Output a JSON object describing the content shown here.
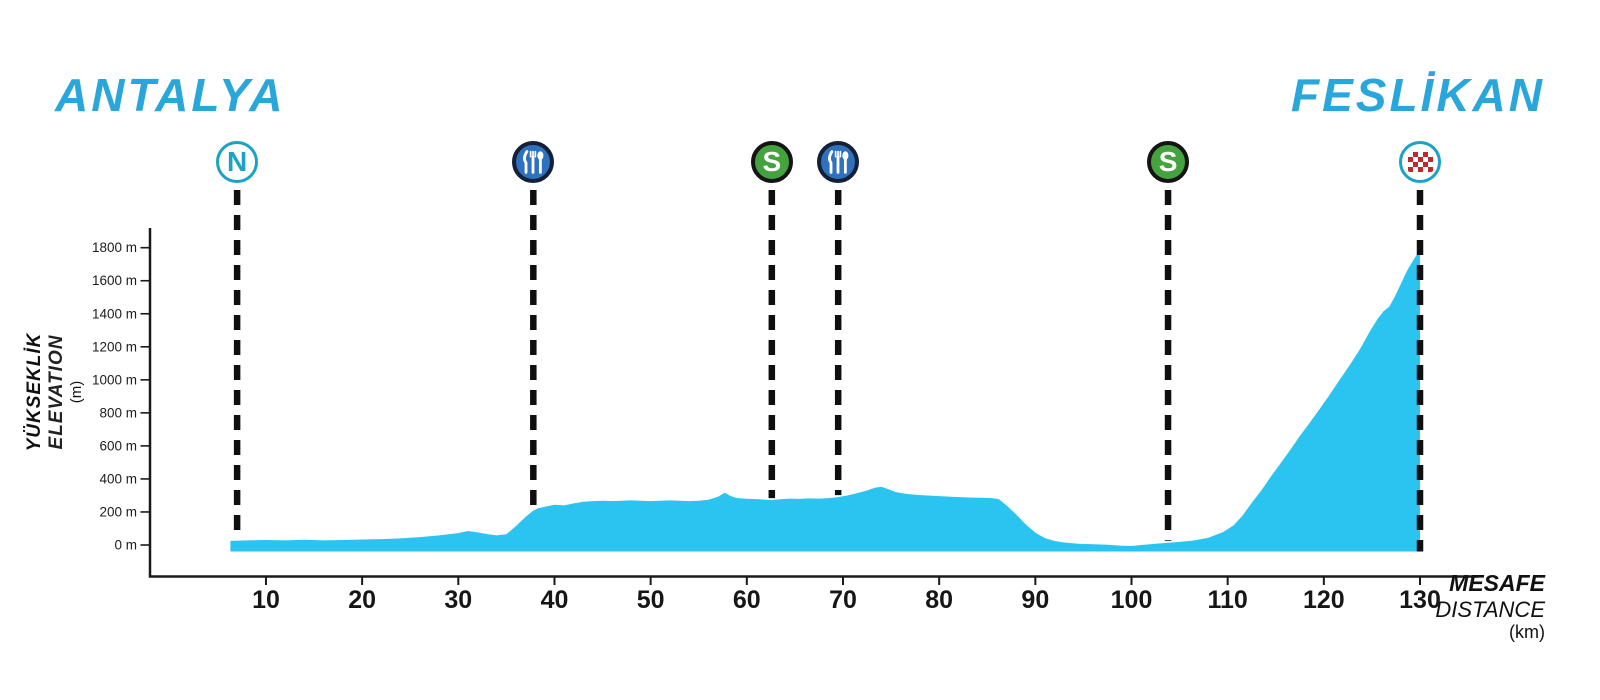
{
  "header": {
    "start_label": "ANTALYA",
    "finish_label": "FESLİKAN"
  },
  "y_axis": {
    "title_line1": "YÜKSEKLİK",
    "title_line2": "ELEVATION",
    "title_line3": "(m)",
    "tick_labels": [
      "0 m",
      "200 m",
      "400 m",
      "600 m",
      "800 m",
      "1000 m",
      "1200 m",
      "1400 m",
      "1600 m",
      "1800 m"
    ],
    "tick_values": [
      0,
      200,
      400,
      600,
      800,
      1000,
      1200,
      1400,
      1600,
      1800
    ]
  },
  "x_axis": {
    "label_line1": "MESAFE",
    "label_line2": "DISTANCE",
    "label_line3": "(km)",
    "tick_labels": [
      "10",
      "20",
      "30",
      "40",
      "50",
      "60",
      "70",
      "80",
      "90",
      "100",
      "110",
      "120",
      "130"
    ],
    "tick_values": [
      10,
      20,
      30,
      40,
      50,
      60,
      70,
      80,
      90,
      100,
      110,
      120,
      130
    ]
  },
  "colors": {
    "profile_fill": "#2BC4F0",
    "title": "#2AA7DA",
    "axis": "#1A1A1A",
    "dash": "#0F0F0F",
    "icon_ring_cyan": "#1BA3C6",
    "icon_letter_cyan": "#1BA3C6",
    "feed_bg": "#2E71BE",
    "feed_ring": "#142038",
    "sprint_bg": "#44A33F",
    "sprint_ring": "#141414",
    "checker_red": "#C4262E",
    "white": "#FFFFFF"
  },
  "chart_data": {
    "type": "area",
    "title": "Stage elevation profile Antalya to Feslikan",
    "xlabel": "MESAFE DISTANCE (km)",
    "ylabel": "YÜKSEKLİK ELEVATION (m)",
    "xlim": [
      0,
      138
    ],
    "ylim": [
      0,
      1900
    ],
    "grid": false,
    "profile": [
      [
        6.3,
        25
      ],
      [
        8,
        28
      ],
      [
        10,
        30
      ],
      [
        12,
        28
      ],
      [
        14,
        32
      ],
      [
        16,
        28
      ],
      [
        18,
        30
      ],
      [
        20,
        33
      ],
      [
        22,
        36
      ],
      [
        24,
        40
      ],
      [
        26,
        48
      ],
      [
        28,
        58
      ],
      [
        30,
        72
      ],
      [
        31,
        85
      ],
      [
        32,
        76
      ],
      [
        33,
        66
      ],
      [
        34,
        58
      ],
      [
        35,
        65
      ],
      [
        36,
        115
      ],
      [
        37,
        170
      ],
      [
        37.8,
        208
      ],
      [
        38.3,
        222
      ],
      [
        39,
        232
      ],
      [
        40,
        244
      ],
      [
        41,
        240
      ],
      [
        42,
        252
      ],
      [
        43,
        262
      ],
      [
        44,
        266
      ],
      [
        45,
        268
      ],
      [
        46,
        266
      ],
      [
        47,
        268
      ],
      [
        48,
        270
      ],
      [
        49,
        268
      ],
      [
        50,
        266
      ],
      [
        51,
        268
      ],
      [
        52,
        270
      ],
      [
        53,
        268
      ],
      [
        54,
        266
      ],
      [
        55,
        268
      ],
      [
        56,
        274
      ],
      [
        57,
        292
      ],
      [
        57.7,
        316
      ],
      [
        58.4,
        294
      ],
      [
        59,
        284
      ],
      [
        60,
        280
      ],
      [
        61,
        278
      ],
      [
        62,
        274
      ],
      [
        62.6,
        272
      ],
      [
        63.5,
        277
      ],
      [
        64.5,
        281
      ],
      [
        65.5,
        279
      ],
      [
        66.5,
        282
      ],
      [
        67.5,
        281
      ],
      [
        68.5,
        284
      ],
      [
        69.5,
        290
      ],
      [
        70.5,
        300
      ],
      [
        71.5,
        314
      ],
      [
        72.5,
        330
      ],
      [
        73.4,
        348
      ],
      [
        74,
        352
      ],
      [
        74.6,
        340
      ],
      [
        75.5,
        320
      ],
      [
        76.5,
        310
      ],
      [
        77.5,
        304
      ],
      [
        78.5,
        300
      ],
      [
        79.5,
        297
      ],
      [
        80.5,
        294
      ],
      [
        81.5,
        291
      ],
      [
        82.5,
        289
      ],
      [
        83.5,
        287
      ],
      [
        84.5,
        286
      ],
      [
        85.5,
        284
      ],
      [
        86.2,
        278
      ],
      [
        87,
        240
      ],
      [
        88,
        185
      ],
      [
        89,
        125
      ],
      [
        90,
        75
      ],
      [
        91,
        42
      ],
      [
        92,
        24
      ],
      [
        93,
        15
      ],
      [
        94.5,
        8
      ],
      [
        96,
        4
      ],
      [
        97.5,
        1
      ],
      [
        99,
        -4
      ],
      [
        100,
        -6
      ],
      [
        101,
        0
      ],
      [
        102.5,
        8
      ],
      [
        103.8,
        14
      ],
      [
        105,
        19
      ],
      [
        106.5,
        27
      ],
      [
        108,
        44
      ],
      [
        109.5,
        78
      ],
      [
        110.6,
        118
      ],
      [
        111.5,
        175
      ],
      [
        112.5,
        255
      ],
      [
        113.5,
        330
      ],
      [
        114.5,
        415
      ],
      [
        115.5,
        495
      ],
      [
        116.5,
        575
      ],
      [
        117.5,
        660
      ],
      [
        118.6,
        745
      ],
      [
        119.5,
        818
      ],
      [
        120.5,
        900
      ],
      [
        121.7,
        1005
      ],
      [
        122.7,
        1090
      ],
      [
        123.7,
        1180
      ],
      [
        124.8,
        1295
      ],
      [
        125.6,
        1370
      ],
      [
        126.2,
        1415
      ],
      [
        126.8,
        1442
      ],
      [
        127.4,
        1505
      ],
      [
        128.1,
        1592
      ],
      [
        128.7,
        1665
      ],
      [
        129.3,
        1725
      ],
      [
        130,
        1788
      ]
    ],
    "markers": [
      {
        "name": "neutral-start",
        "icon": "N",
        "glyph": "N",
        "km": 7
      },
      {
        "name": "feed-zone-1",
        "icon": "cutlery",
        "km": 37.8
      },
      {
        "name": "sprint-1",
        "icon": "S",
        "glyph": "S",
        "km": 62.6
      },
      {
        "name": "feed-zone-2",
        "icon": "cutlery",
        "km": 69.5
      },
      {
        "name": "sprint-2",
        "icon": "S",
        "glyph": "S",
        "km": 103.8
      },
      {
        "name": "finish",
        "icon": "checker",
        "km": 130,
        "to_baseline": true
      }
    ]
  }
}
